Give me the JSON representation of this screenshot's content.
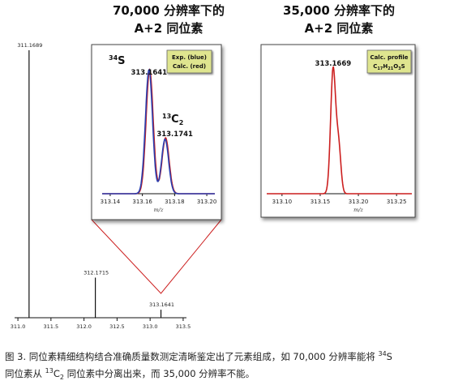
{
  "headings": {
    "left": {
      "line1": "70,000 分辨率下的",
      "line2": "A+2 同位素"
    },
    "right": {
      "line1": "35,000 分辨率下的",
      "line2": "A+2 同位素"
    }
  },
  "caption": {
    "line1_a": "图 3. 同位素精细结构结合准确质量数测定清晰鉴定出了元素组成，如 70,000 分辨率能将 ",
    "line1_sup": "34",
    "line1_b": "S",
    "line2_a": "同位素从 ",
    "line2_sup": "13",
    "line2_b": "C",
    "line2_sub": "2",
    "line2_c": " 同位素中分离出来，而 35,000 分辨率不能。"
  },
  "colors": {
    "exp": "#2a3fb0",
    "calc": "#cc1f1f",
    "legend_bg": "#dfe58f",
    "axis": "#111111"
  },
  "chart_data": [
    {
      "id": "overview",
      "type": "bar",
      "xlabel": "m/z",
      "xlim": [
        310.95,
        313.55
      ],
      "x_ticks": [
        311.0,
        311.5,
        312.0,
        312.5,
        313.0,
        313.5
      ],
      "x_tick_labels": [
        "311.0",
        "311.5",
        "312.0",
        "312.5",
        "313.0",
        "313.5"
      ],
      "ylim": [
        0,
        100
      ],
      "peaks": [
        {
          "x": 311.1689,
          "y": 100,
          "label": "311.1689"
        },
        {
          "x": 312.1715,
          "y": 15,
          "label": "312.1715"
        },
        {
          "x": 313.1641,
          "y": 3,
          "label": "313.1641"
        }
      ],
      "zoom_marker_x": 313.1641
    },
    {
      "id": "resolution-70000",
      "type": "line",
      "xlabel": "m/z",
      "xlim": [
        313.135,
        313.205
      ],
      "x_ticks": [
        313.14,
        313.16,
        313.18,
        313.2
      ],
      "x_tick_labels": [
        "313.14",
        "313.16",
        "313.18",
        "313.20"
      ],
      "ylim": [
        0,
        100
      ],
      "legend": {
        "line1": "Exp. (blue)",
        "line2": "Calc. (red)"
      },
      "series": [
        {
          "name": "Exp. (blue)",
          "peaks": [
            {
              "center": 313.1641,
              "height": 100,
              "width": 0.0022
            },
            {
              "center": 313.1741,
              "height": 44,
              "width": 0.0022
            }
          ]
        },
        {
          "name": "Calc. (red)",
          "peaks": [
            {
              "center": 313.1645,
              "height": 100,
              "width": 0.0022
            },
            {
              "center": 313.1744,
              "height": 45,
              "width": 0.0022
            }
          ]
        }
      ],
      "annotations": {
        "s34": {
          "sup": "34",
          "text": "S",
          "mass": "313.1641"
        },
        "c13": {
          "sup": "13",
          "text": "C",
          "sub": "2",
          "mass": "313.1741"
        }
      }
    },
    {
      "id": "resolution-35000",
      "type": "line",
      "xlabel": "m/z",
      "xlim": [
        313.08,
        313.27
      ],
      "x_ticks": [
        313.1,
        313.15,
        313.2,
        313.25
      ],
      "x_tick_labels": [
        "313.10",
        "313.15",
        "313.20",
        "313.25"
      ],
      "ylim": [
        0,
        100
      ],
      "legend": {
        "line1": "Calc. profile",
        "formula": [
          [
            "C",
            "17"
          ],
          [
            "H",
            "21"
          ],
          [
            "O",
            "3"
          ],
          [
            "S",
            ""
          ]
        ]
      },
      "series": [
        {
          "name": "Calc. profile",
          "peaks": [
            {
              "center": 313.1669,
              "height": 100,
              "width": 0.0033
            },
            {
              "center": 313.1741,
              "height": 38,
              "width": 0.003
            }
          ]
        }
      ],
      "annotations": {
        "apex": {
          "mass": "313.1669"
        }
      }
    }
  ]
}
